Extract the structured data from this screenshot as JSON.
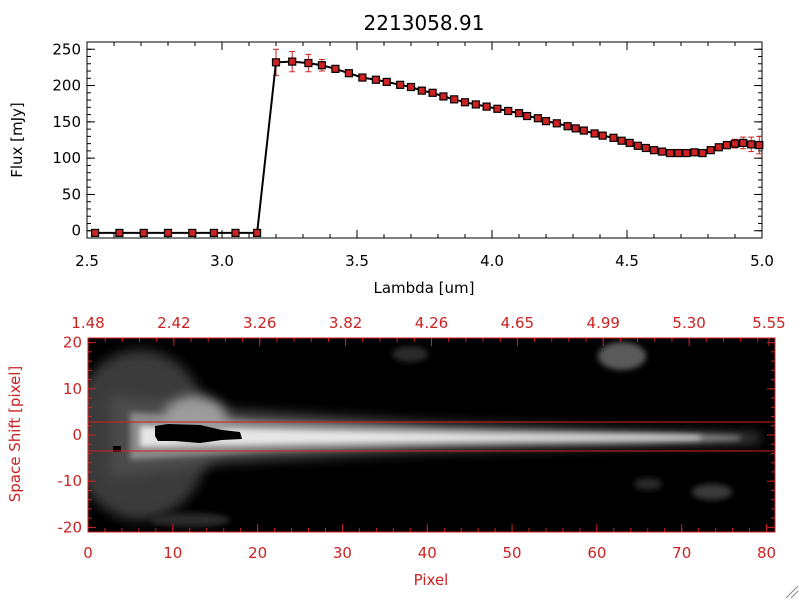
{
  "chart_data": [
    {
      "type": "line",
      "title": "2213058.91",
      "xlabel": "Lambda [um]",
      "ylabel": "Flux [mJy]",
      "xlim": [
        2.5,
        5.0
      ],
      "ylim": [
        -10,
        260
      ],
      "xticks": [
        "2.5",
        "3.0",
        "3.5",
        "4.0",
        "4.5",
        "5.0"
      ],
      "yticks": [
        "0",
        "50",
        "100",
        "150",
        "200",
        "250"
      ],
      "colors": {
        "line": "#000000",
        "marker": "#cc2222",
        "errorbar": "#cc2222"
      },
      "x": [
        2.53,
        2.62,
        2.71,
        2.8,
        2.89,
        2.97,
        3.05,
        3.13,
        3.2,
        3.26,
        3.32,
        3.37,
        3.42,
        3.47,
        3.52,
        3.57,
        3.61,
        3.66,
        3.7,
        3.74,
        3.78,
        3.82,
        3.86,
        3.9,
        3.94,
        3.98,
        4.02,
        4.06,
        4.1,
        4.13,
        4.17,
        4.2,
        4.24,
        4.28,
        4.31,
        4.34,
        4.38,
        4.41,
        4.45,
        4.48,
        4.51,
        4.54,
        4.57,
        4.6,
        4.63,
        4.66,
        4.69,
        4.72,
        4.75,
        4.78,
        4.81,
        4.84,
        4.87,
        4.9,
        4.93,
        4.96,
        4.99
      ],
      "y": [
        -3,
        -3,
        -3,
        -3,
        -3,
        -3,
        -3,
        -3,
        232,
        233,
        231,
        228,
        223,
        217,
        211,
        208,
        205,
        201,
        198,
        193,
        190,
        185,
        181,
        177,
        174,
        171,
        168,
        165,
        162,
        158,
        155,
        151,
        148,
        144,
        141,
        138,
        134,
        131,
        128,
        124,
        121,
        117,
        114,
        111,
        109,
        107,
        107,
        107,
        108,
        107,
        111,
        115,
        118,
        120,
        121,
        119,
        118
      ],
      "yerr": [
        0,
        0,
        0,
        0,
        0,
        0,
        0,
        0,
        18,
        14,
        12,
        8,
        4,
        3,
        3,
        3,
        3,
        3,
        3,
        3,
        3,
        3,
        3,
        3,
        3,
        3,
        3,
        3,
        3,
        3,
        3,
        3,
        3,
        3,
        3,
        3,
        3,
        3,
        3,
        3,
        3,
        3,
        3,
        3,
        3,
        3,
        3,
        3,
        3,
        3,
        4,
        4,
        5,
        6,
        8,
        10,
        12
      ]
    },
    {
      "type": "heatmap",
      "xlabel": "Pixel",
      "ylabel": "Space Shift [pixel]",
      "xlim": [
        0,
        81
      ],
      "ylim": [
        -21,
        21
      ],
      "xticks": [
        "0",
        "10",
        "20",
        "30",
        "40",
        "50",
        "60",
        "70",
        "80"
      ],
      "yticks": [
        "-20",
        "-10",
        "0",
        "10",
        "20"
      ],
      "top_axis_ticks": [
        "1.48",
        "2.42",
        "3.26",
        "3.82",
        "4.26",
        "4.65",
        "4.99",
        "5.30",
        "5.55"
      ],
      "colormap": "grayscale",
      "guide_lines_y": [
        3,
        -3
      ],
      "colors": {
        "axes": "#cc2222",
        "guide_lines": "#cc2222"
      }
    }
  ]
}
